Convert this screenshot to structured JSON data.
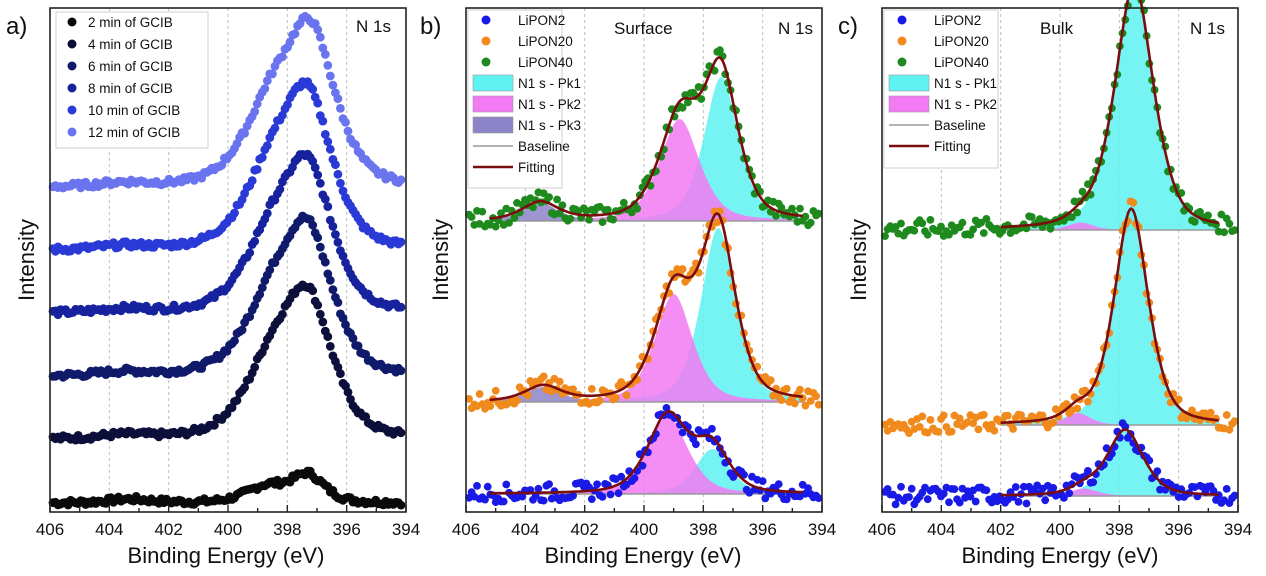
{
  "chart_data": [
    {
      "type": "scatter",
      "panel_label": "a)",
      "corner_label": "N 1s",
      "xlabel": "Binding Energy (eV)",
      "ylabel": "Intensity",
      "xlim": [
        406,
        394
      ],
      "x_reversed": true,
      "x_ticks": [
        "406",
        "404",
        "402",
        "400",
        "398",
        "396",
        "394"
      ],
      "grid": "vertical-dashed",
      "legend_position": "top-left",
      "series": [
        {
          "name": "2 min of GCIB",
          "color": "#0a0a0a",
          "offset": 0,
          "peaks": [
            [
              398.7,
              0.45,
              0.75
            ],
            [
              397.3,
              0.75,
              0.6
            ],
            [
              403.3,
              0.1,
              0.8
            ]
          ]
        },
        {
          "name": "4 min of GCIB",
          "color": "#0b0f3a",
          "offset": 1,
          "peaks": [
            [
              398.6,
              1.7,
              1.0
            ],
            [
              397.3,
              3.6,
              0.9
            ],
            [
              403.5,
              0.1,
              0.9
            ]
          ]
        },
        {
          "name": "6 min of GCIB",
          "color": "#101a6b",
          "offset": 2,
          "peaks": [
            [
              398.6,
              1.7,
              1.0
            ],
            [
              397.3,
              3.7,
              0.9
            ],
            [
              403.5,
              0.1,
              0.9
            ]
          ]
        },
        {
          "name": "8 min of GCIB",
          "color": "#16229e",
          "offset": 3,
          "peaks": [
            [
              398.6,
              1.7,
              1.0
            ],
            [
              397.3,
              3.7,
              0.9
            ],
            [
              403.5,
              0.1,
              0.9
            ]
          ]
        },
        {
          "name": "10 min of GCIB",
          "color": "#2a3ad6",
          "offset": 4,
          "peaks": [
            [
              398.6,
              1.8,
              1.0
            ],
            [
              397.3,
              3.9,
              0.9
            ],
            [
              403.5,
              0.1,
              0.9
            ]
          ]
        },
        {
          "name": "12 min of GCIB",
          "color": "#6a74ee",
          "offset": 5,
          "peaks": [
            [
              398.6,
              1.9,
              1.0
            ],
            [
              397.2,
              4.0,
              0.9
            ],
            [
              403.5,
              0.1,
              0.9
            ]
          ]
        }
      ]
    },
    {
      "type": "scatter",
      "panel_label": "b)",
      "title": "Surface",
      "corner_label": "N 1s",
      "xlabel": "Binding Energy (eV)",
      "ylabel": "Intensity",
      "xlim": [
        406,
        394
      ],
      "x_reversed": true,
      "x_ticks": [
        "406",
        "404",
        "402",
        "400",
        "398",
        "396",
        "394"
      ],
      "grid": "vertical-dashed",
      "legend_position": "top-left",
      "legend": [
        {
          "label": "LiPON2",
          "kind": "dot",
          "color": "#1a1ae6"
        },
        {
          "label": "LiPON20",
          "kind": "dot",
          "color": "#f08a1c"
        },
        {
          "label": "LiPON40",
          "kind": "dot",
          "color": "#1e8a1e"
        },
        {
          "label": "N1 s - Pk1",
          "kind": "box",
          "color": "#5ef2f2"
        },
        {
          "label": "N1 s - Pk2",
          "kind": "box",
          "color": "#f27af2"
        },
        {
          "label": "N1 s - Pk3",
          "kind": "box",
          "color": "#8c84c8"
        },
        {
          "label": "Baseline",
          "kind": "line",
          "color": "#9a9a9a"
        },
        {
          "label": "Fitting",
          "kind": "line",
          "color": "#7a0d0d"
        }
      ],
      "series": [
        {
          "name": "LiPON40",
          "color": "#1e8a1e",
          "offset": 2,
          "components": [
            {
              "peak": "Pk1",
              "center": 397.4,
              "height": 0.96,
              "width": 0.62
            },
            {
              "peak": "Pk2",
              "center": 398.8,
              "height": 0.68,
              "width": 0.72
            },
            {
              "peak": "Pk3",
              "center": 403.5,
              "height": 0.12,
              "width": 0.65
            }
          ]
        },
        {
          "name": "LiPON20",
          "color": "#f08a1c",
          "offset": 1,
          "components": [
            {
              "peak": "Pk1",
              "center": 397.5,
              "height": 1.16,
              "width": 0.62
            },
            {
              "peak": "Pk2",
              "center": 399.0,
              "height": 0.72,
              "width": 0.68
            },
            {
              "peak": "Pk3",
              "center": 403.4,
              "height": 0.1,
              "width": 0.65
            }
          ]
        },
        {
          "name": "LiPON2",
          "color": "#1a1ae6",
          "offset": 0,
          "components": [
            {
              "peak": "Pk1",
              "center": 397.7,
              "height": 0.3,
              "width": 0.62
            },
            {
              "peak": "Pk2",
              "center": 399.2,
              "height": 0.52,
              "width": 0.72
            }
          ]
        }
      ]
    },
    {
      "type": "scatter",
      "panel_label": "c)",
      "title": "Bulk",
      "corner_label": "N 1s",
      "xlabel": "Binding Energy (eV)",
      "ylabel": "Intensity",
      "xlim": [
        406,
        394
      ],
      "x_reversed": true,
      "x_ticks": [
        "406",
        "404",
        "402",
        "400",
        "398",
        "396",
        "394"
      ],
      "grid": "vertical-dashed",
      "legend_position": "top-left",
      "legend": [
        {
          "label": "LiPON2",
          "kind": "dot",
          "color": "#1a1ae6"
        },
        {
          "label": "LiPON20",
          "kind": "dot",
          "color": "#f08a1c"
        },
        {
          "label": "LiPON40",
          "kind": "dot",
          "color": "#1e8a1e"
        },
        {
          "label": "N1 s - Pk1",
          "kind": "box",
          "color": "#5ef2f2"
        },
        {
          "label": "N1 s - Pk2",
          "kind": "box",
          "color": "#f27af2"
        },
        {
          "label": "Baseline",
          "kind": "line",
          "color": "#9a9a9a"
        },
        {
          "label": "Fitting",
          "kind": "line",
          "color": "#7a0d0d"
        }
      ],
      "series": [
        {
          "name": "LiPON40",
          "color": "#1e8a1e",
          "offset": 2,
          "components": [
            {
              "peak": "Pk1",
              "center": 397.5,
              "height": 1.64,
              "width": 0.7
            },
            {
              "peak": "Pk2",
              "center": 399.3,
              "height": 0.05,
              "width": 0.45
            }
          ]
        },
        {
          "name": "LiPON20",
          "color": "#f08a1c",
          "offset": 1,
          "components": [
            {
              "peak": "Pk1",
              "center": 397.6,
              "height": 1.44,
              "width": 0.62
            },
            {
              "peak": "Pk2",
              "center": 399.4,
              "height": 0.08,
              "width": 0.45
            }
          ]
        },
        {
          "name": "LiPON2",
          "color": "#1a1ae6",
          "offset": 0,
          "components": [
            {
              "peak": "Pk1",
              "center": 397.8,
              "height": 0.44,
              "width": 0.65
            },
            {
              "peak": "Pk2",
              "center": 399.2,
              "height": 0.05,
              "width": 0.5
            }
          ]
        }
      ]
    }
  ]
}
